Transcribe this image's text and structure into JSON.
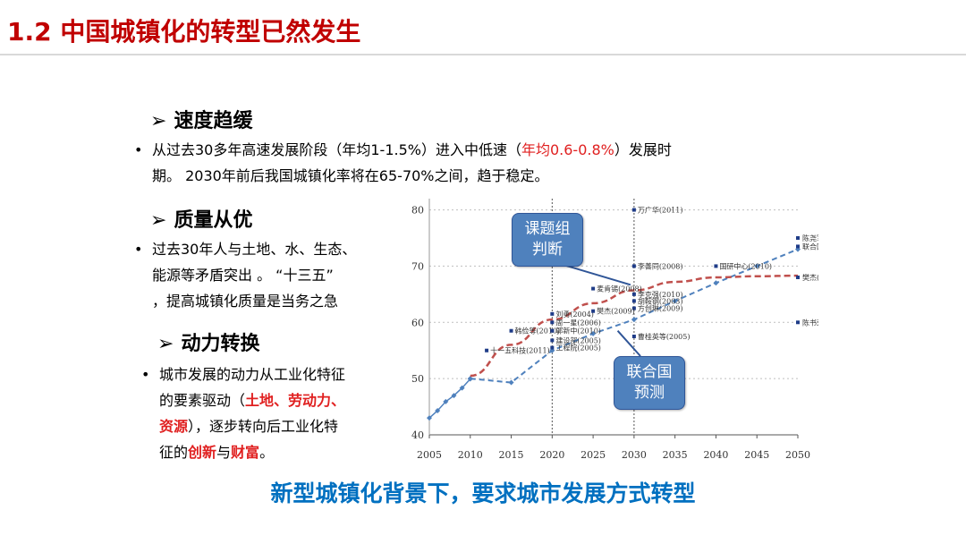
{
  "slide_title": "1.2 中国城镇化的转型已然发生",
  "sections": {
    "speed": {
      "heading": "速度趋缓",
      "text_a": "从过去30多年高速发展阶段（年均1-1.5%）进入中低速（",
      "text_red": "年均0.6-0.8%",
      "text_b": "）发展时",
      "text_line2": "期。 2030年前后我国城镇化率将在65-70%之间，趋于稳定。"
    },
    "quality": {
      "heading": "质量从优",
      "line1": "过去30年人与土地、水、生态、",
      "line2": "能源等矛盾突出 。 “十三五”",
      "line3": "，提高城镇化质量是当务之急"
    },
    "driver": {
      "heading": "动力转换",
      "line1": "城市发展的动力从工业化特征",
      "line2_a": "的要素驱动（",
      "line2_red": "土地、劳动力、",
      "line3_red": "资源",
      "line3_b": "），逐步转向后工业化特",
      "line4_a": "征的",
      "line4_red1": "创新",
      "line4_b": "与",
      "line4_red2": "财富",
      "line4_c": "。"
    }
  },
  "callouts": {
    "ketizu": "课题组判断",
    "un": "联合国预测"
  },
  "footer": "新型城镇化背景下，要求城市发展方式转型",
  "colors": {
    "title_red": "#c00000",
    "text_red": "#e02020",
    "footer_blue": "#0070c0",
    "series_blue": "#4f81bd",
    "series_red": "#c0504d",
    "callout_fill": "#4f81bd"
  },
  "chart_data": {
    "type": "scatter",
    "x_ticks": [
      2005,
      2010,
      2015,
      2020,
      2025,
      2030,
      2035,
      2040,
      2045,
      2050
    ],
    "y_ticks": [
      40,
      50,
      60,
      70,
      80
    ],
    "xlim": [
      2005,
      2050
    ],
    "ylim": [
      40,
      82
    ],
    "grid": "horizontal-dotted",
    "vlines": [
      2020,
      2030
    ],
    "series": [
      {
        "style": "solid-blue-historical",
        "points": [
          [
            2005,
            43
          ],
          [
            2006,
            44.3
          ],
          [
            2007,
            45.9
          ],
          [
            2008,
            46.99
          ],
          [
            2009,
            48.34
          ],
          [
            2010,
            49.95
          ]
        ]
      },
      {
        "style": "dashed-blue-UN",
        "points": [
          [
            2010,
            50
          ],
          [
            2015,
            49.3
          ],
          [
            2020,
            55
          ],
          [
            2025,
            58
          ],
          [
            2030,
            60.5
          ],
          [
            2035,
            63.8
          ],
          [
            2040,
            67
          ],
          [
            2045,
            70
          ],
          [
            2050,
            73
          ]
        ]
      },
      {
        "style": "dashed-red-judgment",
        "points": [
          [
            2010,
            50.5
          ],
          [
            2015,
            56
          ],
          [
            2020,
            60.5
          ],
          [
            2025,
            63.4
          ],
          [
            2030,
            65.7
          ],
          [
            2035,
            67.2
          ],
          [
            2040,
            68
          ],
          [
            2045,
            68.2
          ],
          [
            2050,
            68.3
          ]
        ]
      }
    ],
    "annotations": [
      {
        "x": 2030,
        "y": 80,
        "label": "万广华(2011)"
      },
      {
        "x": 2050,
        "y": 75,
        "label": "陈尧军(2007)"
      },
      {
        "x": 2050,
        "y": 73.5,
        "label": "联合国(2011)"
      },
      {
        "x": 2030,
        "y": 70,
        "label": "李善同(2008)"
      },
      {
        "x": 2040,
        "y": 70,
        "label": "国研中心(2010)"
      },
      {
        "x": 2050,
        "y": 68,
        "label": "樊杰(2009)"
      },
      {
        "x": 2025,
        "y": 66,
        "label": "麦肯锡(2008)"
      },
      {
        "x": 2030,
        "y": 65,
        "label": "李克强(2010)"
      },
      {
        "x": 2030,
        "y": 63.8,
        "label": "胡鞍钢(2003)"
      },
      {
        "x": 2030,
        "y": 62.5,
        "label": "方创琳(2009)"
      },
      {
        "x": 2020,
        "y": 61.5,
        "label": "刘勇(2004)"
      },
      {
        "x": 2025,
        "y": 62,
        "label": "樊杰(2009)"
      },
      {
        "x": 2020,
        "y": 60,
        "label": "周一星(2006)"
      },
      {
        "x": 2015,
        "y": 58.5,
        "label": "韩俭等(2010)"
      },
      {
        "x": 2020,
        "y": 58.5,
        "label": "郭新中(2010)"
      },
      {
        "x": 2020,
        "y": 56.8,
        "label": "建设部(2005)"
      },
      {
        "x": 2020,
        "y": 55.5,
        "label": "工程院(2005)"
      },
      {
        "x": 2012,
        "y": 55,
        "label": "十一五科技(2011)"
      },
      {
        "x": 2030,
        "y": 57.5,
        "label": "曹桂英等(2005)"
      },
      {
        "x": 2050,
        "y": 60,
        "label": "陈书荣(2000)"
      }
    ]
  }
}
